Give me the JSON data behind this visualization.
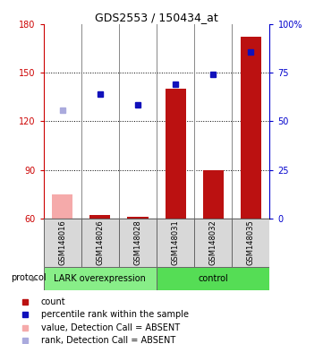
{
  "title": "GDS2553 / 150434_at",
  "samples": [
    "GSM148016",
    "GSM148026",
    "GSM148028",
    "GSM148031",
    "GSM148032",
    "GSM148035"
  ],
  "ylim_left": [
    60,
    180
  ],
  "ylim_right": [
    0,
    100
  ],
  "yticks_left": [
    60,
    90,
    120,
    150,
    180
  ],
  "yticks_right": [
    0,
    25,
    50,
    75,
    100
  ],
  "yticklabels_right": [
    "0",
    "25",
    "50",
    "75",
    "100%"
  ],
  "bar_values": [
    null,
    62,
    61,
    140,
    90,
    172
  ],
  "bar_absent": [
    75,
    null,
    null,
    null,
    null,
    null
  ],
  "bar_color_present": "#bb1111",
  "bar_color_absent": "#f5aaaa",
  "dot_values": [
    null,
    137,
    130,
    143,
    149,
    163
  ],
  "dot_absent": [
    127,
    null,
    null,
    null,
    null,
    null
  ],
  "dot_color_present": "#1111bb",
  "dot_color_absent": "#aaaadd",
  "group1_label": "LARK overexpression",
  "group1_color": "#88ee88",
  "group2_label": "control",
  "group2_color": "#55dd55",
  "protocol_label": "protocol",
  "legend_labels": [
    "count",
    "percentile rank within the sample",
    "value, Detection Call = ABSENT",
    "rank, Detection Call = ABSENT"
  ],
  "legend_colors": [
    "#bb1111",
    "#1111bb",
    "#f5aaaa",
    "#aaaadd"
  ],
  "bar_bottom": 60,
  "title_fontsize": 9,
  "tick_fontsize": 7,
  "label_fontsize": 6,
  "proto_fontsize": 7,
  "legend_fontsize": 7
}
